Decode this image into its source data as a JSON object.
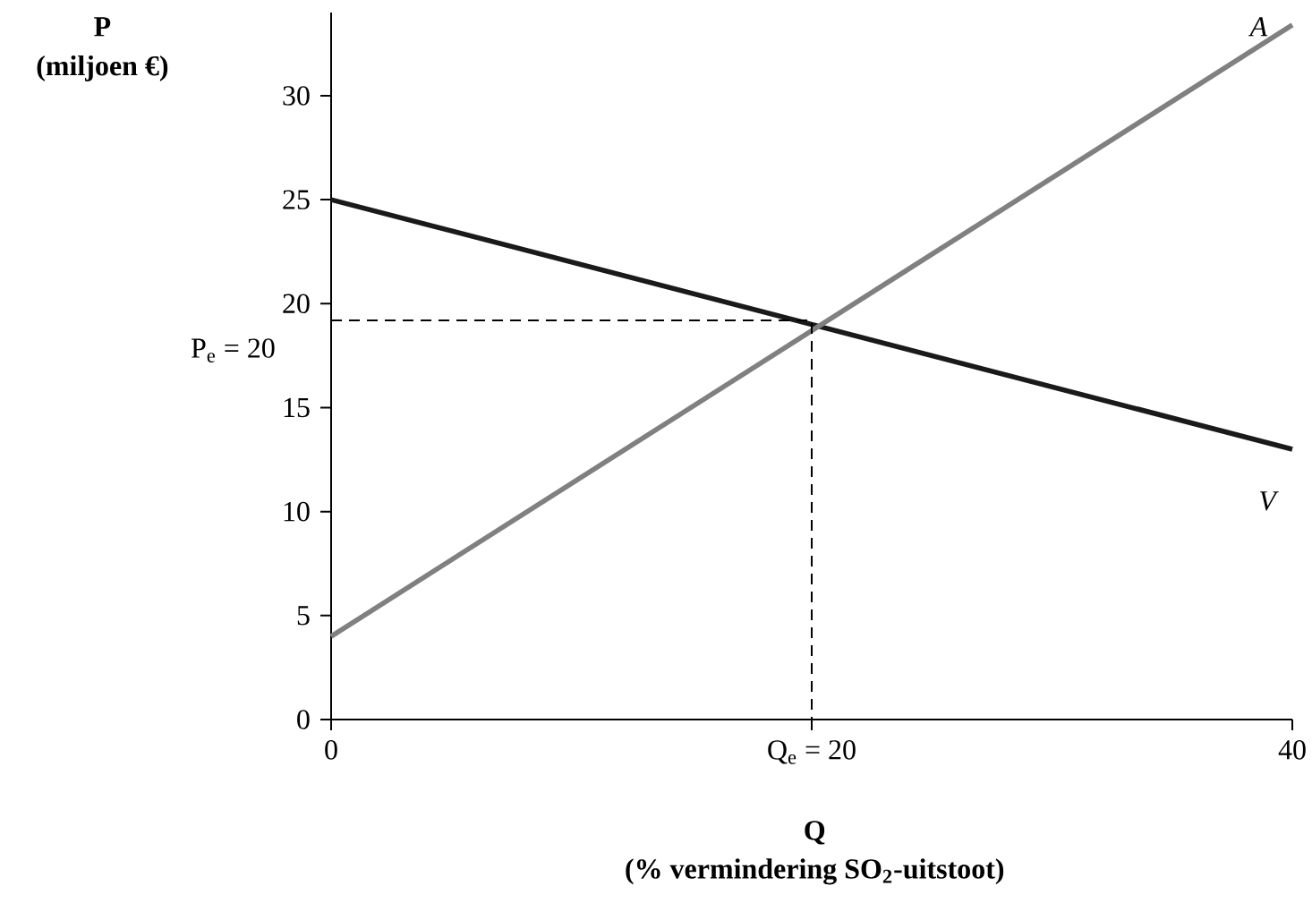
{
  "chart_data": {
    "type": "line",
    "xlabel": "Q",
    "xlim": [
      0,
      40
    ],
    "ylim": [
      0,
      34
    ],
    "xticks": [
      0,
      {
        "value": 20,
        "label": "Q$_{e}$ = 20"
      },
      40
    ],
    "yticks": [
      0,
      5,
      10,
      15,
      20,
      25,
      30
    ],
    "grid": false,
    "series": [
      {
        "color": "#1a1a1a",
        "x": [
          0,
          40
        ],
        "values": [
          25,
          13
        ],
        "line_style": "solid"
      },
      {
        "color": "#808080",
        "x": [
          0,
          40
        ],
        "values": [
          4,
          33.4
        ],
        "line_style": "solid"
      },
      {
        "color": "#000000",
        "x": [
          0,
          20,
          20
        ],
        "values": [
          19.2,
          19.2,
          0
        ],
        "line_style": "dashed"
      }
    ],
    "annotations": [
      "P",
      "(miljoen €)",
      "(% vermindering SO$_{2}$-uitstoot)",
      "A",
      "V",
      "P$_{e}$ = 20"
    ]
  }
}
